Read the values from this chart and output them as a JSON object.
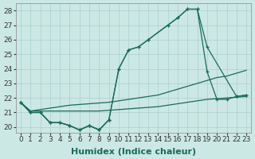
{
  "xlabel": "Humidex (Indice chaleur)",
  "x_values": [
    0,
    1,
    2,
    3,
    4,
    5,
    6,
    7,
    8,
    9,
    10,
    11,
    12,
    13,
    14,
    15,
    16,
    17,
    18,
    19,
    20,
    21,
    22,
    23
  ],
  "line_top_x": [
    0,
    1,
    2,
    3,
    4,
    5,
    6,
    7,
    8,
    9,
    10,
    11,
    12,
    13,
    15,
    16,
    17,
    18,
    19,
    22,
    23
  ],
  "line_top_y": [
    21.7,
    21.0,
    21.0,
    20.3,
    20.3,
    20.1,
    19.8,
    20.1,
    19.8,
    20.5,
    24.0,
    25.3,
    25.5,
    26.0,
    27.0,
    27.5,
    28.1,
    28.1,
    25.5,
    22.1,
    22.2
  ],
  "line_mid_x": [
    0,
    1,
    2,
    3,
    4,
    5,
    6,
    7,
    8,
    9,
    10,
    11,
    12,
    13,
    15,
    16,
    17,
    18,
    19,
    20,
    21,
    22,
    23
  ],
  "line_mid_y": [
    21.7,
    21.0,
    21.0,
    20.3,
    20.3,
    20.1,
    19.8,
    20.1,
    19.8,
    20.5,
    24.0,
    25.3,
    25.5,
    26.0,
    27.0,
    27.5,
    28.1,
    28.1,
    23.8,
    21.9,
    21.9,
    22.1,
    22.2
  ],
  "line_upper_diag_x": [
    0,
    1,
    2,
    3,
    4,
    5,
    6,
    7,
    8,
    9,
    10,
    11,
    12,
    13,
    14,
    15,
    16,
    17,
    18,
    19,
    20,
    21,
    22,
    23
  ],
  "line_upper_diag_y": [
    21.7,
    21.1,
    21.2,
    21.3,
    21.4,
    21.5,
    21.55,
    21.6,
    21.65,
    21.7,
    21.8,
    21.9,
    22.0,
    22.1,
    22.2,
    22.4,
    22.6,
    22.8,
    23.0,
    23.2,
    23.4,
    23.5,
    23.7,
    23.9
  ],
  "line_lower_diag_x": [
    0,
    1,
    2,
    3,
    4,
    5,
    6,
    7,
    8,
    9,
    10,
    11,
    12,
    13,
    14,
    15,
    16,
    17,
    18,
    19,
    20,
    21,
    22,
    23
  ],
  "line_lower_diag_y": [
    21.7,
    21.1,
    21.1,
    21.1,
    21.1,
    21.1,
    21.1,
    21.1,
    21.1,
    21.15,
    21.2,
    21.25,
    21.3,
    21.35,
    21.4,
    21.5,
    21.6,
    21.7,
    21.8,
    21.9,
    21.95,
    22.0,
    22.05,
    22.1
  ],
  "line_bot_x": [
    0,
    1,
    2,
    3,
    4,
    5,
    6,
    7,
    8,
    9
  ],
  "line_bot_y": [
    21.7,
    21.0,
    21.0,
    20.3,
    20.3,
    20.1,
    19.8,
    20.1,
    19.8,
    20.5
  ],
  "ylim": [
    19.6,
    28.5
  ],
  "xlim": [
    -0.5,
    23.5
  ],
  "yticks": [
    20,
    21,
    22,
    23,
    24,
    25,
    26,
    27,
    28
  ],
  "xtick_labels": [
    "0",
    "1",
    "2",
    "3",
    "4",
    "5",
    "6",
    "7",
    "8",
    "9",
    "10",
    "11",
    "12",
    "13",
    "14",
    "15",
    "16",
    "17",
    "18",
    "19",
    "20",
    "21",
    "22",
    "23"
  ],
  "bg_color": "#cce8e4",
  "grid_color": "#aacfcc",
  "line_color": "#1a6b5a",
  "tick_fontsize": 6.5,
  "xlabel_fontsize": 8
}
